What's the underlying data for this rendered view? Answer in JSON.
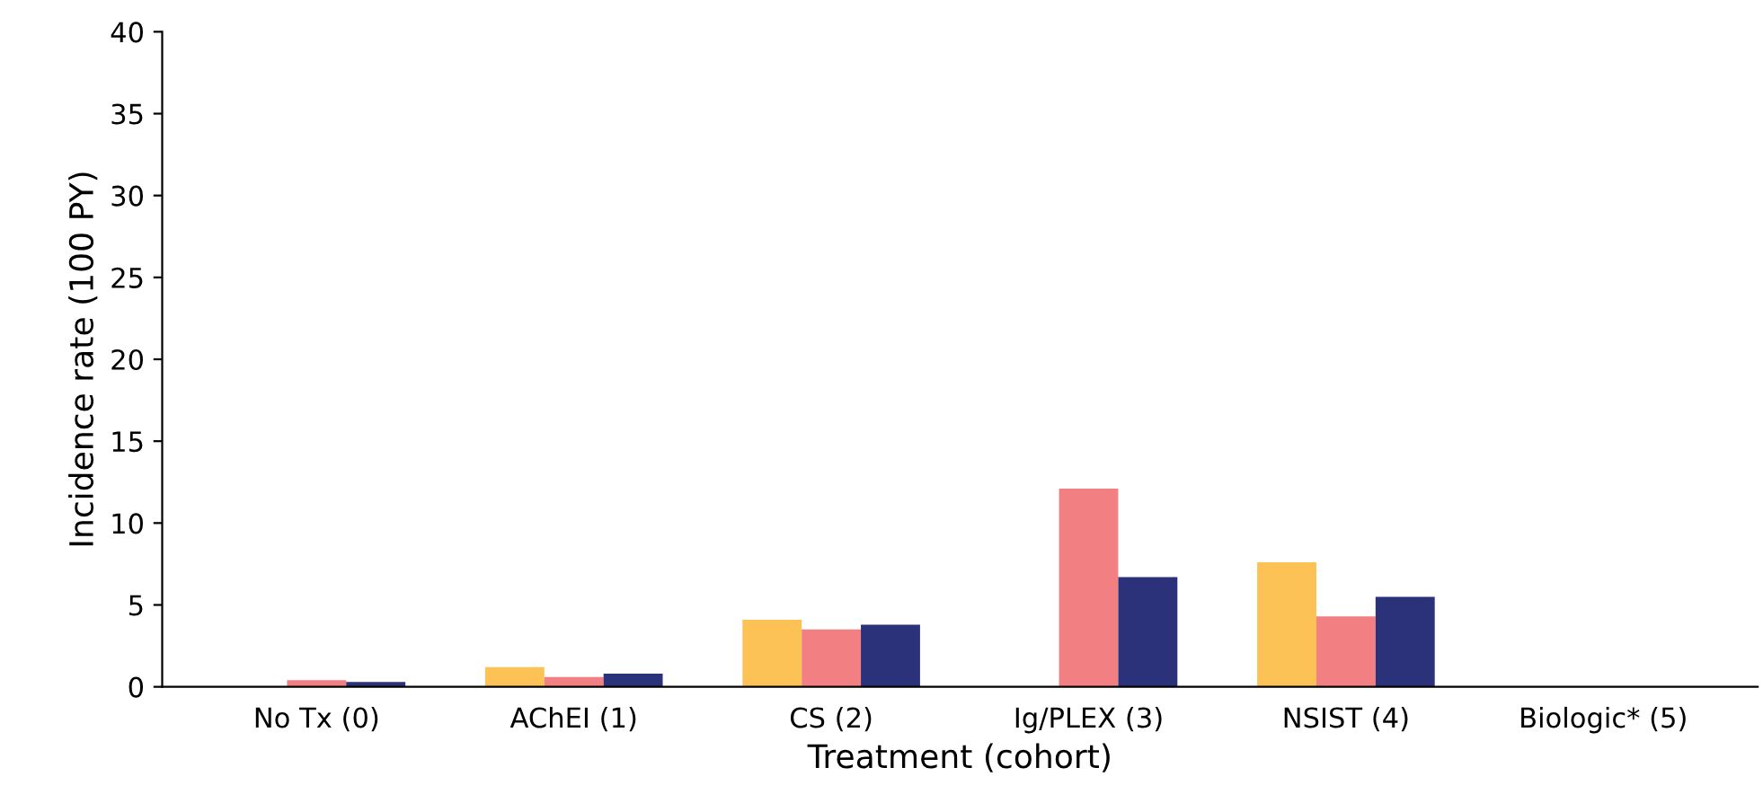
{
  "chart_data": {
    "type": "bar",
    "xlabel": "Treatment (cohort)",
    "ylabel": "Incidence rate (100 PY)",
    "categories": [
      "No Tx (0)",
      "AChEI (1)",
      "CS (2)",
      "Ig/PLEX (3)",
      "NSIST (4)",
      "Biologic* (5)"
    ],
    "series": [
      {
        "color": "#fcc256",
        "values": [
          0,
          1.2,
          4.1,
          0,
          7.6,
          0
        ]
      },
      {
        "color": "#f27f82",
        "values": [
          0.4,
          0.6,
          3.5,
          12.1,
          4.3,
          0
        ]
      },
      {
        "color": "#2b327a",
        "values": [
          0.3,
          0.8,
          3.8,
          6.7,
          5.5,
          0
        ]
      }
    ],
    "ylim": [
      0,
      40
    ],
    "yticks": [
      0,
      5,
      10,
      15,
      20,
      25,
      30,
      35,
      40
    ],
    "grid": false,
    "legend": false
  }
}
